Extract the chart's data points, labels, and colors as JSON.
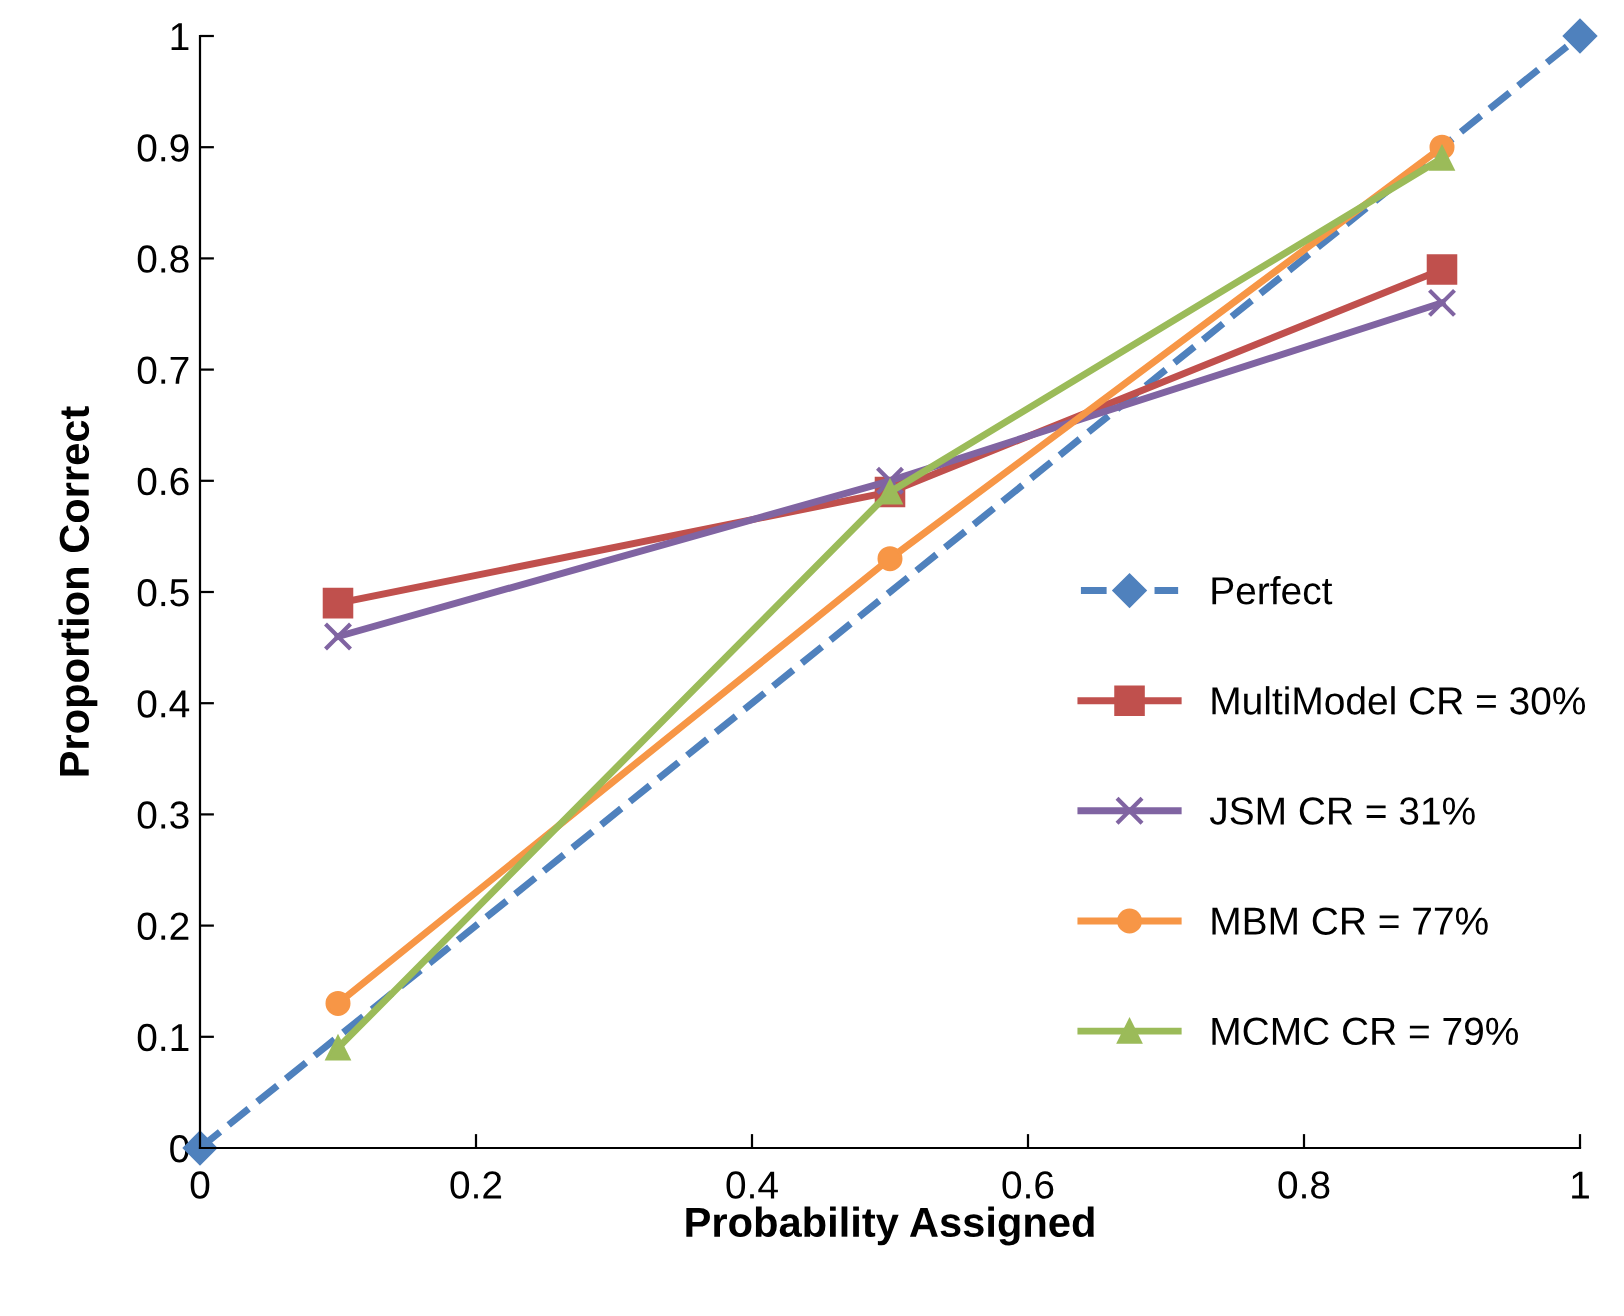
{
  "chart_data": {
    "type": "line",
    "xlabel": "Probability Assigned",
    "ylabel": "Proportion Correct",
    "xlim": [
      0,
      1
    ],
    "ylim": [
      0,
      1
    ],
    "xticks": [
      0,
      0.2,
      0.4,
      0.6,
      0.8,
      1
    ],
    "yticks": [
      0,
      0.1,
      0.2,
      0.3,
      0.4,
      0.5,
      0.6,
      0.7,
      0.8,
      0.9,
      1
    ],
    "grid": false,
    "legend": "right",
    "series": [
      {
        "name": "Perfect",
        "color": "#4f81bd",
        "x": [
          0,
          1
        ],
        "values": [
          0,
          1
        ],
        "marker": "diamond",
        "line_style": "dashed"
      },
      {
        "name": "MultiModel CR = 30%",
        "color": "#c0504d",
        "x": [
          0.1,
          0.5,
          0.9
        ],
        "values": [
          0.49,
          0.59,
          0.79
        ],
        "marker": "square",
        "line_style": "solid"
      },
      {
        "name": "JSM CR = 31%",
        "color": "#8064a2",
        "x": [
          0.1,
          0.5,
          0.9
        ],
        "values": [
          0.46,
          0.6,
          0.76
        ],
        "marker": "cross",
        "line_style": "solid"
      },
      {
        "name": "MBM CR = 77%",
        "color": "#f79646",
        "x": [
          0.1,
          0.5,
          0.9
        ],
        "values": [
          0.13,
          0.53,
          0.9
        ],
        "marker": "circle",
        "line_style": "solid"
      },
      {
        "name": "MCMC CR = 79%",
        "color": "#9bbb59",
        "x": [
          0.1,
          0.5,
          0.9
        ],
        "values": [
          0.09,
          0.59,
          0.89
        ],
        "marker": "triangle",
        "line_style": "solid"
      }
    ]
  }
}
